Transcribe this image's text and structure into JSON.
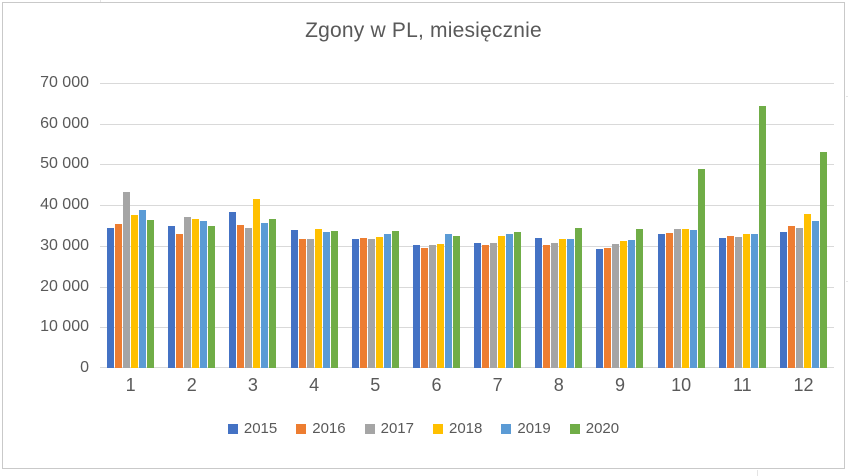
{
  "chart": {
    "title": "Zgony w PL, miesięcznie"
  },
  "chart_data": {
    "type": "bar",
    "title": "Zgony w PL, miesięcznie",
    "xlabel": "",
    "ylabel": "",
    "categories": [
      "1",
      "2",
      "3",
      "4",
      "5",
      "6",
      "7",
      "8",
      "9",
      "10",
      "11",
      "12"
    ],
    "series": [
      {
        "name": "2015",
        "color": "#4472C4",
        "values": [
          34400,
          34900,
          38400,
          34000,
          31800,
          30100,
          30700,
          31900,
          29200,
          32800,
          31900,
          33400
        ]
      },
      {
        "name": "2016",
        "color": "#ED7D31",
        "values": [
          35400,
          32900,
          35100,
          31600,
          31900,
          29600,
          30200,
          30200,
          29400,
          33100,
          32400,
          34900
        ]
      },
      {
        "name": "2017",
        "color": "#A5A5A5",
        "values": [
          43300,
          37200,
          34500,
          31700,
          31700,
          30100,
          30600,
          30700,
          30400,
          34100,
          32300,
          34400
        ]
      },
      {
        "name": "2018",
        "color": "#FFC000",
        "values": [
          37600,
          36700,
          41400,
          34200,
          32200,
          30500,
          32400,
          31700,
          31100,
          34100,
          32800,
          37900
        ]
      },
      {
        "name": "2019",
        "color": "#5B9BD5",
        "values": [
          38800,
          36100,
          35700,
          33300,
          33000,
          33000,
          32800,
          31600,
          31400,
          33800,
          32800,
          36100
        ]
      },
      {
        "name": "2020",
        "color": "#70AD47",
        "values": [
          36300,
          35000,
          36500,
          33700,
          33700,
          32500,
          33500,
          34500,
          34100,
          49000,
          64400,
          53100
        ]
      }
    ],
    "ylim": [
      0,
      70000
    ],
    "ytick_step": 10000,
    "ytick_labels": [
      "0",
      "10 000",
      "20 000",
      "30 000",
      "40 000",
      "50 000",
      "60 000",
      "70 000"
    ],
    "grid": true,
    "legend_position": "bottom",
    "text_color": "#595959",
    "gridline_color": "#d9d9d9"
  }
}
